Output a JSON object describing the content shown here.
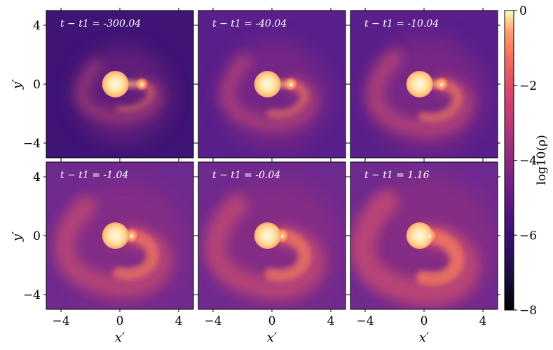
{
  "chart_data": {
    "type": "heatmap",
    "xlabel": "x′",
    "ylabel": "y′",
    "xlim": [
      -5,
      5
    ],
    "ylim": [
      -5,
      5
    ],
    "xticks": [
      -4,
      0,
      4
    ],
    "yticks": [
      4,
      0,
      -4
    ],
    "xtick_labels": [
      "−4",
      "0",
      "4"
    ],
    "ytick_labels": [
      "4",
      "0",
      "−4"
    ],
    "colorbar": {
      "label": "log10(ρ)",
      "range": [
        -8,
        0
      ],
      "ticks": [
        0,
        -2,
        -4,
        -6,
        -8
      ],
      "tick_labels": [
        "0",
        "−2",
        "−4",
        "−6",
        "−8"
      ],
      "colormap": "magma"
    },
    "panels": [
      {
        "label": "t − t1 = -300.04",
        "time": -300.04,
        "companion_x": 1.5,
        "spiral": 0.25
      },
      {
        "label": "t − t1 = -40.04",
        "time": -40.04,
        "companion_x": 1.3,
        "spiral": 0.45
      },
      {
        "label": "t − t1 = -10.04",
        "time": -10.04,
        "companion_x": 1.2,
        "spiral": 0.6
      },
      {
        "label": "t − t1 = -1.04",
        "time": -1.04,
        "companion_x": 0.8,
        "spiral": 0.8
      },
      {
        "label": "t − t1 = -0.04",
        "time": -0.04,
        "companion_x": 0.7,
        "spiral": 0.85
      },
      {
        "label": "t − t1 = 1.16",
        "time": 1.16,
        "companion_x": 0.4,
        "spiral": 1.0
      }
    ]
  }
}
